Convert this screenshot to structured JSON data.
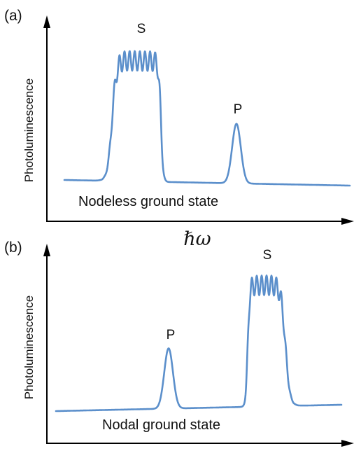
{
  "x_axis_symbol": "ℏω",
  "colors": {
    "curve": "#5b8fcb",
    "axis": "#000000"
  },
  "panels": [
    {
      "letter": "(a)",
      "y_axis_label": "Photoluminescence",
      "caption": "Nodeless ground state",
      "peak_s_label": "S",
      "peak_p_label": "P"
    },
    {
      "letter": "(b)",
      "y_axis_label": "Photoluminescence",
      "caption": "Nodal ground state",
      "peak_s_label": "S",
      "peak_p_label": "P"
    }
  ]
}
